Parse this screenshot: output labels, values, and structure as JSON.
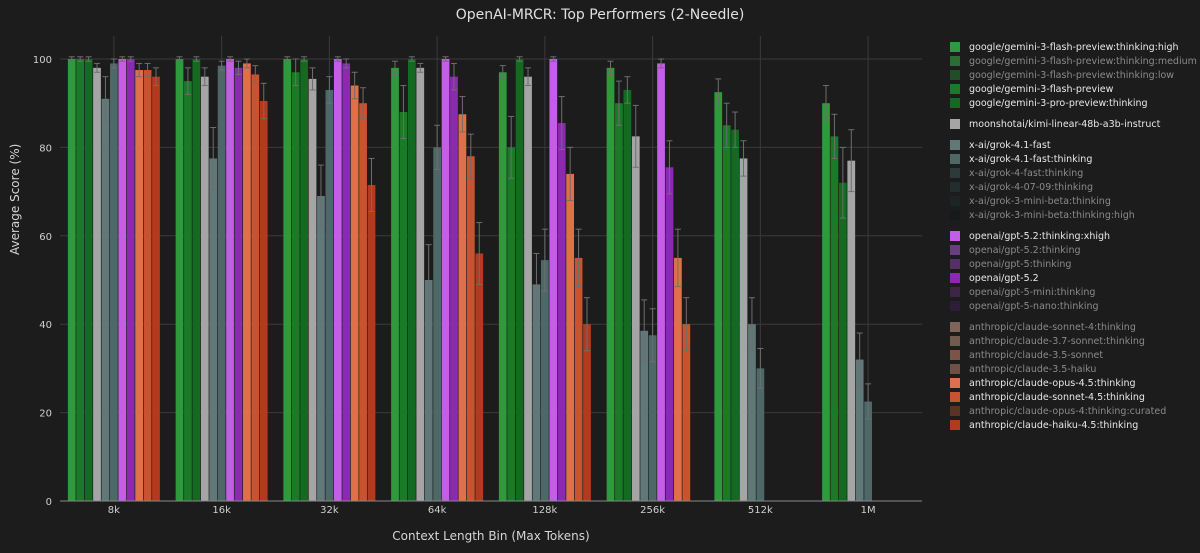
{
  "chart_data": {
    "type": "bar",
    "title": "OpenAI-MRCR: Top Performers (2-Needle)",
    "xlabel": "Context Length Bin (Max Tokens)",
    "ylabel": "Average Score (%)",
    "ylim": [
      0,
      100
    ],
    "yticks": [
      0,
      20,
      40,
      60,
      80,
      100
    ],
    "grid": true,
    "legend_position": "right",
    "categories": [
      "8k",
      "16k",
      "32k",
      "64k",
      "128k",
      "256k",
      "512k",
      "1M"
    ],
    "series": [
      {
        "name": "google/gemini-3-flash-preview:thinking:high",
        "color": "#2e9a3c",
        "legend_active": true,
        "values": [
          100,
          100,
          100,
          98,
          97,
          98,
          92.5,
          90
        ],
        "errors": [
          0.5,
          0.5,
          0.5,
          1.5,
          1.5,
          1.5,
          3,
          4
        ]
      },
      {
        "name": "google/gemini-3-flash-preview:thinking:medium",
        "color": "#2b6d33",
        "legend_active": false,
        "values": [
          null,
          null,
          null,
          null,
          null,
          null,
          null,
          null
        ],
        "errors": [
          null,
          null,
          null,
          null,
          null,
          null,
          null,
          null
        ]
      },
      {
        "name": "google/gemini-3-flash-preview:thinking:low",
        "color": "#234d28",
        "legend_active": false,
        "values": [
          null,
          null,
          null,
          null,
          null,
          null,
          null,
          null
        ],
        "errors": [
          null,
          null,
          null,
          null,
          null,
          null,
          null,
          null
        ]
      },
      {
        "name": "google/gemini-3-flash-preview",
        "color": "#1a7a28",
        "legend_active": true,
        "values": [
          100,
          95,
          97,
          88,
          80,
          90,
          85,
          82.5
        ],
        "errors": [
          0.5,
          3,
          3,
          6,
          7,
          5,
          5,
          5
        ]
      },
      {
        "name": "google/gemini-3-pro-preview:thinking",
        "color": "#146a20",
        "legend_active": true,
        "values": [
          100,
          100,
          100,
          100,
          100,
          93,
          84,
          72
        ],
        "errors": [
          0.5,
          0.5,
          0.5,
          0.5,
          0.5,
          3,
          4,
          8
        ]
      },
      {
        "name": "moonshotai/kimi-linear-48b-a3b-instruct",
        "color": "#a5a5a5",
        "legend_active": true,
        "values": [
          98,
          96,
          95.5,
          98,
          96,
          82.5,
          77.5,
          77
        ],
        "errors": [
          1,
          2,
          2.5,
          1,
          2,
          7,
          4,
          7
        ]
      },
      {
        "name": "x-ai/grok-4.1-fast",
        "color": "#607878",
        "legend_active": true,
        "values": [
          91,
          77.5,
          69,
          50,
          49,
          38.5,
          40,
          32
        ],
        "errors": [
          5,
          7,
          7,
          8,
          7,
          7,
          6,
          6
        ]
      },
      {
        "name": "x-ai/grok-4.1-fast:thinking",
        "color": "#4e6868",
        "legend_active": true,
        "values": [
          99,
          98.5,
          93,
          80,
          54.5,
          37.5,
          30,
          22.5
        ],
        "errors": [
          1,
          1,
          3,
          5,
          7,
          6,
          4.5,
          4
        ]
      },
      {
        "name": "x-ai/grok-4-fast:thinking",
        "color": "#2c3a3a",
        "legend_active": false,
        "values": [
          null,
          null,
          null,
          null,
          null,
          null,
          null,
          null
        ],
        "errors": [
          null,
          null,
          null,
          null,
          null,
          null,
          null,
          null
        ]
      },
      {
        "name": "x-ai/grok-4-07-09:thinking",
        "color": "#222e2e",
        "legend_active": false,
        "values": [
          null,
          null,
          null,
          null,
          null,
          null,
          null,
          null
        ],
        "errors": [
          null,
          null,
          null,
          null,
          null,
          null,
          null,
          null
        ]
      },
      {
        "name": "x-ai/grok-3-mini-beta:thinking",
        "color": "#1c2424",
        "legend_active": false,
        "values": [
          null,
          null,
          null,
          null,
          null,
          null,
          null,
          null
        ],
        "errors": [
          null,
          null,
          null,
          null,
          null,
          null,
          null,
          null
        ]
      },
      {
        "name": "x-ai/grok-3-mini-beta:thinking:high",
        "color": "#161a1a",
        "legend_active": false,
        "values": [
          null,
          null,
          null,
          null,
          null,
          null,
          null,
          null
        ],
        "errors": [
          null,
          null,
          null,
          null,
          null,
          null,
          null,
          null
        ]
      },
      {
        "name": "openai/gpt-5.2:thinking:xhigh",
        "color": "#c45ee6",
        "legend_active": true,
        "values": [
          100,
          100,
          100,
          100,
          100,
          99,
          null,
          null
        ],
        "errors": [
          0.5,
          0.5,
          0.5,
          0.5,
          0.5,
          1,
          null,
          null
        ]
      },
      {
        "name": "openai/gpt-5.2:thinking",
        "color": "#6a3d80",
        "legend_active": false,
        "values": [
          null,
          null,
          null,
          null,
          null,
          null,
          null,
          null
        ],
        "errors": [
          null,
          null,
          null,
          null,
          null,
          null,
          null,
          null
        ]
      },
      {
        "name": "openai/gpt-5:thinking",
        "color": "#553068",
        "legend_active": false,
        "values": [
          null,
          null,
          null,
          null,
          null,
          null,
          null,
          null
        ],
        "errors": [
          null,
          null,
          null,
          null,
          null,
          null,
          null,
          null
        ]
      },
      {
        "name": "openai/gpt-5.2",
        "color": "#8b2ab0",
        "legend_active": true,
        "values": [
          100,
          98,
          99,
          96,
          85.5,
          75.5,
          null,
          null
        ],
        "errors": [
          0.5,
          1.5,
          1,
          3,
          6,
          6,
          null,
          null
        ]
      },
      {
        "name": "openai/gpt-5-mini:thinking",
        "color": "#3d2548",
        "legend_active": false,
        "values": [
          null,
          null,
          null,
          null,
          null,
          null,
          null,
          null
        ],
        "errors": [
          null,
          null,
          null,
          null,
          null,
          null,
          null,
          null
        ]
      },
      {
        "name": "openai/gpt-5-nano:thinking",
        "color": "#2e1c38",
        "legend_active": false,
        "values": [
          null,
          null,
          null,
          null,
          null,
          null,
          null,
          null
        ],
        "errors": [
          null,
          null,
          null,
          null,
          null,
          null,
          null,
          null
        ]
      },
      {
        "name": "anthropic/claude-sonnet-4:thinking",
        "color": "#806458",
        "legend_active": false,
        "values": [
          null,
          null,
          null,
          null,
          null,
          null,
          null,
          null
        ],
        "errors": [
          null,
          null,
          null,
          null,
          null,
          null,
          null,
          null
        ]
      },
      {
        "name": "anthropic/claude-3.7-sonnet:thinking",
        "color": "#735a4f",
        "legend_active": false,
        "values": [
          null,
          null,
          null,
          null,
          null,
          null,
          null,
          null
        ],
        "errors": [
          null,
          null,
          null,
          null,
          null,
          null,
          null,
          null
        ]
      },
      {
        "name": "anthropic/claude-3.5-sonnet",
        "color": "#7a5546",
        "legend_active": false,
        "values": [
          null,
          null,
          null,
          null,
          null,
          null,
          null,
          null
        ],
        "errors": [
          null,
          null,
          null,
          null,
          null,
          null,
          null,
          null
        ]
      },
      {
        "name": "anthropic/claude-3.5-haiku",
        "color": "#6e5044",
        "legend_active": false,
        "values": [
          null,
          null,
          null,
          null,
          null,
          null,
          null,
          null
        ],
        "errors": [
          null,
          null,
          null,
          null,
          null,
          null,
          null,
          null
        ]
      },
      {
        "name": "anthropic/claude-opus-4.5:thinking",
        "color": "#e07048",
        "legend_active": true,
        "values": [
          97.5,
          99,
          94,
          87.5,
          74,
          55,
          null,
          null
        ],
        "errors": [
          1.5,
          1,
          3,
          4,
          6,
          6.5,
          null,
          null
        ]
      },
      {
        "name": "anthropic/claude-sonnet-4.5:thinking",
        "color": "#c9532f",
        "legend_active": true,
        "values": [
          97.5,
          96.5,
          90,
          78,
          55,
          40,
          null,
          null
        ],
        "errors": [
          1.5,
          2,
          3.5,
          5,
          6.5,
          6,
          null,
          null
        ]
      },
      {
        "name": "anthropic/claude-opus-4:thinking:curated",
        "color": "#5a3324",
        "legend_active": false,
        "values": [
          null,
          null,
          null,
          null,
          null,
          null,
          null,
          null
        ],
        "errors": [
          null,
          null,
          null,
          null,
          null,
          null,
          null,
          null
        ]
      },
      {
        "name": "anthropic/claude-haiku-4.5:thinking",
        "color": "#b33a1e",
        "legend_active": true,
        "values": [
          96,
          90.5,
          71.5,
          56,
          40,
          null,
          null,
          null
        ],
        "errors": [
          2,
          4,
          6,
          7,
          6,
          null,
          null,
          null
        ]
      }
    ],
    "legend_groups": [
      [
        0,
        1,
        2,
        3,
        4
      ],
      [
        5
      ],
      [
        6,
        7,
        8,
        9,
        10,
        11
      ],
      [
        12,
        13,
        14,
        15,
        16,
        17
      ],
      [
        18,
        19,
        20,
        21,
        22,
        23,
        24,
        25
      ]
    ]
  },
  "theme": {
    "background": "#1c1c1c",
    "grid_color": "#3a3a3a",
    "axis_color": "#888888",
    "text_color": "#d0d0d0",
    "legend_inactive_text": "#8a8a8a",
    "error_bar_color": "#6e6e6e"
  }
}
